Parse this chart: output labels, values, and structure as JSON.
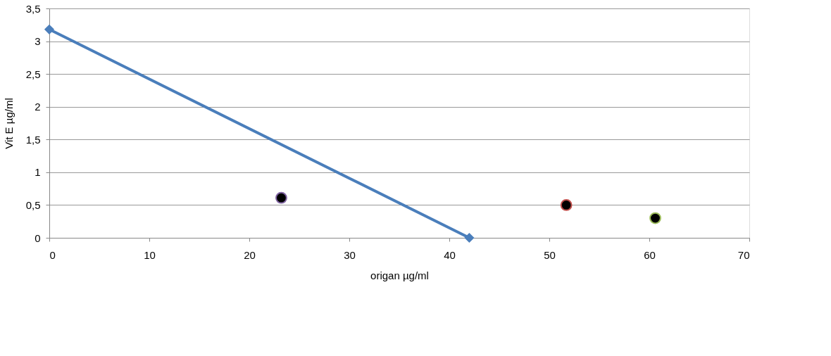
{
  "chart_data": {
    "type": "line",
    "xlabel": "origan µg/ml",
    "ylabel": "Vit E µg/ml",
    "xlim": [
      0,
      70
    ],
    "xticks": [
      0,
      10,
      20,
      30,
      40,
      50,
      60,
      70
    ],
    "ylim": [
      0,
      3.5
    ],
    "yticks": [
      {
        "value": 0,
        "label": "0"
      },
      {
        "value": 0.5,
        "label": "0,5"
      },
      {
        "value": 1,
        "label": "1"
      },
      {
        "value": 1.5,
        "label": "1,5"
      },
      {
        "value": 2,
        "label": "2"
      },
      {
        "value": 2.5,
        "label": "2,5"
      },
      {
        "value": 3,
        "label": "3"
      },
      {
        "value": 3.5,
        "label": "3,5"
      }
    ],
    "grid": "y",
    "legend": false,
    "series": [
      {
        "color": "#4a7ebb",
        "marker": "diamond",
        "line_style": "solid",
        "x": [
          0,
          42
        ],
        "values": [
          3.18,
          0
        ]
      },
      {
        "type": "scatter",
        "color": "#000000",
        "marker": "circle",
        "x": [
          23.2,
          51.7,
          60.6
        ],
        "values": [
          0.61,
          0.5,
          0.3
        ]
      }
    ]
  }
}
